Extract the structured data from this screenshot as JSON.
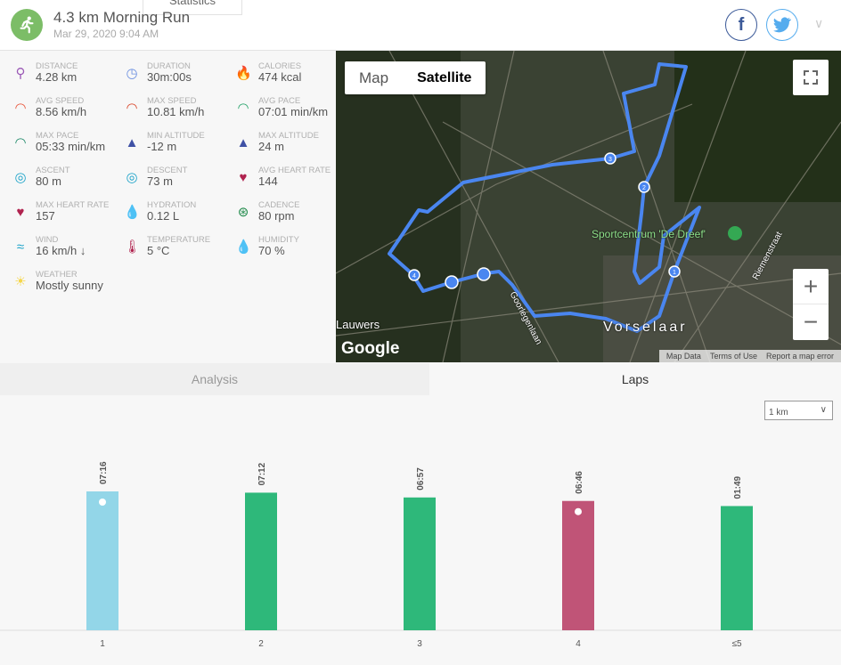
{
  "header": {
    "tab_fragment": "Statistics",
    "title": "4.3 km Morning Run",
    "date": "Mar 29, 2020 9:04 AM",
    "activity_icon": "running-icon",
    "share": [
      "facebook-icon",
      "twitter-icon"
    ],
    "menu_icon": "chevron-down-icon"
  },
  "stats": [
    {
      "label": "DISTANCE",
      "value": "4.28 km",
      "icon": "map-pins-icon",
      "color": "#9b59b6"
    },
    {
      "label": "DURATION",
      "value": "30m:00s",
      "icon": "stopwatch-icon",
      "color": "#6b8fe0"
    },
    {
      "label": "CALORIES",
      "value": "474 kcal",
      "icon": "flame-icon",
      "color": "#f07a4a"
    },
    {
      "label": "AVG SPEED",
      "value": "8.56 km/h",
      "icon": "speedometer-icon",
      "color": "#e8553a"
    },
    {
      "label": "MAX SPEED",
      "value": "10.81 km/h",
      "icon": "speedometer-icon",
      "color": "#d9472b"
    },
    {
      "label": "AVG PACE",
      "value": "07:01 min/km",
      "icon": "gauge-icon",
      "color": "#27a36b"
    },
    {
      "label": "MAX PACE",
      "value": "05:33 min/km",
      "icon": "gauge-icon",
      "color": "#1f8a6a"
    },
    {
      "label": "MIN ALTITUDE",
      "value": "-12 m",
      "icon": "mountain-icon",
      "color": "#3f51a5"
    },
    {
      "label": "MAX ALTITUDE",
      "value": "24 m",
      "icon": "mountain-icon",
      "color": "#3f51a5"
    },
    {
      "label": "ASCENT",
      "value": "80 m",
      "icon": "compass-up-icon",
      "color": "#1ca3c9"
    },
    {
      "label": "DESCENT",
      "value": "73 m",
      "icon": "compass-down-icon",
      "color": "#1ca3c9"
    },
    {
      "label": "AVG HEART RATE",
      "value": "144",
      "icon": "heart-icon",
      "color": "#b0234f"
    },
    {
      "label": "MAX HEART RATE",
      "value": "157",
      "icon": "heart-icon",
      "color": "#b0234f"
    },
    {
      "label": "HYDRATION",
      "value": "0.12 L",
      "icon": "water-drops-icon",
      "color": "#8fb4f0"
    },
    {
      "label": "CADENCE",
      "value": "80 rpm",
      "icon": "cadence-wheel-icon",
      "color": "#1f8a4a"
    },
    {
      "label": "WIND",
      "value": "16 km/h ↓",
      "icon": "wind-icon",
      "color": "#1ca3c9"
    },
    {
      "label": "TEMPERATURE",
      "value": "5 °C",
      "icon": "thermometer-icon",
      "color": "#b0234f"
    },
    {
      "label": "HUMIDITY",
      "value": "70 %",
      "icon": "humidity-icon",
      "color": "#8fb4f0"
    },
    {
      "label": "WEATHER",
      "value": "Mostly sunny",
      "icon": "sun-icon",
      "color": "#f5d64a"
    }
  ],
  "map": {
    "type_map": "Map",
    "type_satellite": "Satellite",
    "selected": "Satellite",
    "poi": "Sportcentrum 'De Dreef'",
    "town": "Vorselaar",
    "street1": "Riemenstraat",
    "street2": "Goorlegenlaan",
    "place": "Lauwers",
    "logo": "Google",
    "attribution": [
      "Map Data",
      "Terms of Use",
      "Report a map error"
    ],
    "zoom_in": "+",
    "zoom_out": "−",
    "lap_markers": [
      "1",
      "2",
      "3",
      "4"
    ],
    "route_color": "#4a86f0"
  },
  "tabs": {
    "analysis": "Analysis",
    "laps": "Laps",
    "active": "Laps"
  },
  "lap_select": {
    "value": "1 km"
  },
  "chart_data": {
    "type": "bar",
    "categories": [
      "1",
      "2",
      "3",
      "4",
      "≤5"
    ],
    "labels": [
      "07:16",
      "07:12",
      "06:57",
      "06:46",
      "01:49"
    ],
    "pace_seconds_per_km": [
      436,
      432,
      417,
      406,
      390
    ],
    "colors": [
      "#93d6e8",
      "#2eb87a",
      "#2eb87a",
      "#2eb87a",
      "#c05477"
    ],
    "bar_colors": [
      "#93d6e8",
      "#2eb87a",
      "#2eb87a",
      "#c05477",
      "#2eb87a"
    ],
    "markers": [
      "turtle-icon",
      "",
      "",
      "rabbit-icon",
      ""
    ]
  }
}
